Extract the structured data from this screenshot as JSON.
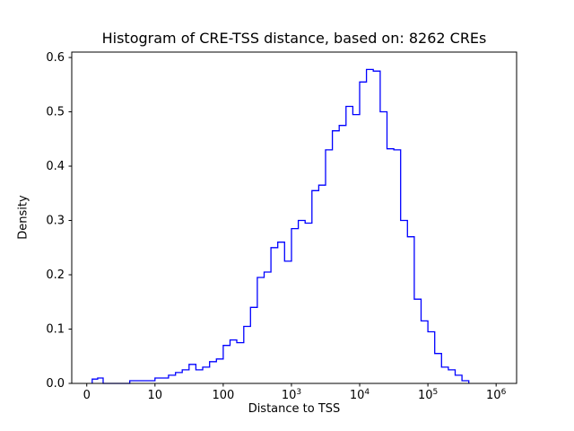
{
  "chart_data": {
    "type": "histogram-step",
    "title": "Histogram of CRE-TSS distance, based on: 8262 CREs",
    "total_cres": 8262,
    "xlabel": "Distance to TSS",
    "ylabel": "Density",
    "x_scale": "symlog",
    "line_color": "#0000ff",
    "axis_color": "#000000",
    "background_color": "#ffffff",
    "ylim": [
      0,
      0.61
    ],
    "y_ticks": [
      {
        "value": 0.0,
        "label": "0.0"
      },
      {
        "value": 0.1,
        "label": "0.1"
      },
      {
        "value": 0.2,
        "label": "0.2"
      },
      {
        "value": 0.3,
        "label": "0.3"
      },
      {
        "value": 0.4,
        "label": "0.4"
      },
      {
        "value": 0.5,
        "label": "0.5"
      },
      {
        "value": 0.6,
        "label": "0.6"
      }
    ],
    "x_ticks": [
      {
        "value": 0,
        "label": "0"
      },
      {
        "value": 10,
        "label": "10"
      },
      {
        "value": 100,
        "label": "100"
      },
      {
        "value": 1000,
        "label": "10^3"
      },
      {
        "value": 10000,
        "label": "10^4"
      },
      {
        "value": 100000,
        "label": "10^5"
      },
      {
        "value": 1000000,
        "label": "10^6"
      }
    ],
    "bin_edges": [
      0.8,
      1.6,
      2.4,
      4,
      6.3,
      10,
      12.6,
      15.8,
      20,
      25.1,
      31.6,
      39.8,
      50.1,
      63.1,
      79.4,
      100,
      126,
      158,
      200,
      251,
      316,
      398,
      501,
      631,
      794,
      1000,
      1259,
      1585,
      1995,
      2512,
      3162,
      3981,
      5012,
      6310,
      7943,
      10000,
      12589,
      15849,
      19953,
      25119,
      31623,
      39811,
      50119,
      63096,
      79433,
      100000,
      125893,
      158489,
      199526,
      251189,
      316228,
      398107
    ],
    "densities": [
      0.008,
      0.01,
      0.0,
      0.0,
      0.005,
      0.01,
      0.01,
      0.015,
      0.02,
      0.025,
      0.035,
      0.025,
      0.03,
      0.04,
      0.045,
      0.07,
      0.08,
      0.075,
      0.105,
      0.14,
      0.195,
      0.205,
      0.25,
      0.26,
      0.225,
      0.285,
      0.3,
      0.295,
      0.355,
      0.365,
      0.43,
      0.465,
      0.475,
      0.51,
      0.495,
      0.555,
      0.578,
      0.575,
      0.5,
      0.432,
      0.43,
      0.3,
      0.27,
      0.155,
      0.115,
      0.095,
      0.055,
      0.03,
      0.025,
      0.015,
      0.005
    ]
  }
}
